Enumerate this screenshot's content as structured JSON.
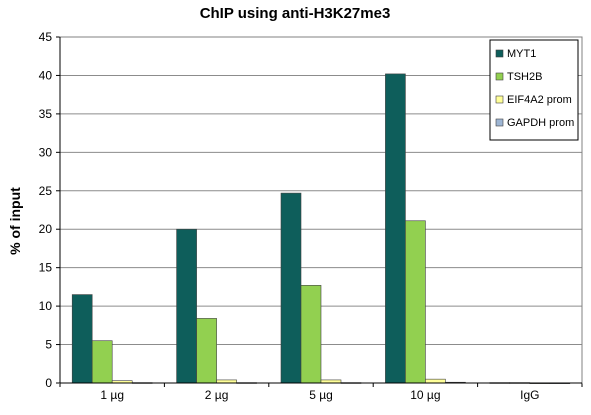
{
  "chart_data": {
    "type": "bar",
    "title": "ChIP using anti-H3K27me3",
    "xlabel": "",
    "ylabel": "% of input",
    "ylim": [
      0,
      45
    ],
    "yticks": [
      0,
      5,
      10,
      15,
      20,
      25,
      30,
      35,
      40,
      45
    ],
    "grid": true,
    "legend_position": "top-right",
    "categories": [
      "1 µg",
      "2 µg",
      "5 µg",
      "10 µg",
      "IgG"
    ],
    "series": [
      {
        "name": "MYT1",
        "color": "#0e5e5b",
        "values": [
          11.5,
          20,
          24.7,
          40.2,
          0.05
        ]
      },
      {
        "name": "TSH2B",
        "color": "#92d050",
        "values": [
          5.5,
          8.4,
          12.7,
          21.1,
          0.05
        ]
      },
      {
        "name": "EIF4A2 prom",
        "color": "#ffff99",
        "values": [
          0.3,
          0.4,
          0.4,
          0.5,
          0.02
        ]
      },
      {
        "name": "GAPDH prom",
        "color": "#9eb6d4",
        "values": [
          0.05,
          0.05,
          0.05,
          0.1,
          0.02
        ]
      }
    ]
  }
}
